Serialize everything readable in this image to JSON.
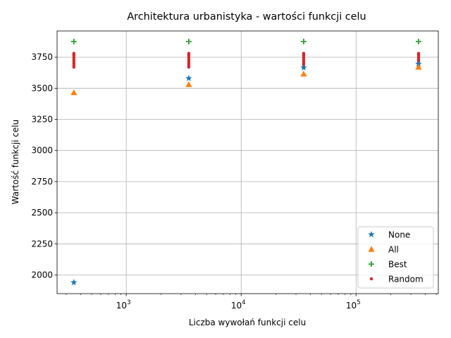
{
  "chart_data": {
    "type": "scatter",
    "title": "Architektura urbanistyka - wartości funkcji celu",
    "xlabel": "Liczba wywołań funkcji celu",
    "ylabel": "Wartość funkcji celu",
    "xscale": "log",
    "xlim": [
      250,
      520000
    ],
    "ylim": [
      1850,
      3960
    ],
    "x_ticks": [
      1000,
      10000,
      100000
    ],
    "x_tick_labels": [
      {
        "base": "10",
        "exp": "3"
      },
      {
        "base": "10",
        "exp": "4"
      },
      {
        "base": "10",
        "exp": "5"
      }
    ],
    "y_ticks": [
      2000,
      2250,
      2500,
      2750,
      3000,
      3250,
      3500,
      3750
    ],
    "y_tick_labels": [
      "2000",
      "2250",
      "2500",
      "2750",
      "3000",
      "3250",
      "3500",
      "3750"
    ],
    "grid": true,
    "legend_position": "lower-right",
    "series": [
      {
        "name": "None",
        "marker": "star",
        "color": "#1f77b4",
        "x": [
          350,
          3500,
          35000,
          350000
        ],
        "y": [
          1940,
          3580,
          3665,
          3695
        ]
      },
      {
        "name": "All",
        "marker": "triangle",
        "color": "#ff7f0e",
        "x": [
          350,
          3500,
          35000,
          350000
        ],
        "y": [
          3465,
          3530,
          3615,
          3670
        ]
      },
      {
        "name": "Best",
        "marker": "plus",
        "color": "#2ca02c",
        "x": [
          350,
          3500,
          35000,
          350000
        ],
        "y": [
          3875,
          3875,
          3875,
          3875
        ]
      },
      {
        "name": "Random",
        "marker": "dot",
        "color": "#d62728",
        "x": [
          350,
          350,
          350,
          350,
          350,
          350,
          350,
          350,
          350,
          3500,
          3500,
          3500,
          3500,
          3500,
          3500,
          3500,
          3500,
          3500,
          35000,
          35000,
          35000,
          35000,
          35000,
          35000,
          35000,
          35000,
          35000,
          350000,
          350000,
          350000,
          350000,
          350000,
          350000,
          350000,
          350000,
          350000
        ],
        "y": [
          3670,
          3685,
          3700,
          3715,
          3730,
          3745,
          3760,
          3770,
          3780,
          3670,
          3685,
          3700,
          3715,
          3730,
          3745,
          3760,
          3770,
          3780,
          3670,
          3685,
          3700,
          3715,
          3730,
          3745,
          3760,
          3770,
          3780,
          3670,
          3685,
          3700,
          3715,
          3730,
          3745,
          3760,
          3770,
          3780
        ]
      }
    ]
  }
}
